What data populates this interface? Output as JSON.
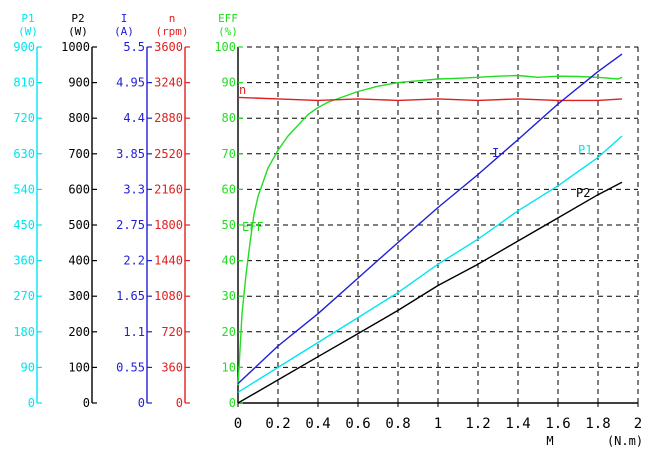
{
  "chart_data": {
    "type": "line",
    "title": "",
    "x_axis": {
      "label": "M",
      "unit": "(N.m)",
      "min": 0,
      "max": 2,
      "ticks": [
        "0",
        "0.2",
        "0.4",
        "0.6",
        "0.8",
        "1",
        "1.2",
        "1.4",
        "1.6",
        "1.8",
        "2"
      ]
    },
    "grid": "dashed",
    "axes": [
      {
        "id": "P1",
        "name": "P1",
        "unit": "(W)",
        "color": "#00e5ee",
        "min": 0,
        "max": 900,
        "ticks": [
          "0",
          "90",
          "180",
          "270",
          "360",
          "450",
          "540",
          "630",
          "720",
          "810",
          "900"
        ]
      },
      {
        "id": "P2",
        "name": "P2",
        "unit": "(W)",
        "color": "#000000",
        "min": 0,
        "max": 1000,
        "ticks": [
          "0",
          "100",
          "200",
          "300",
          "400",
          "500",
          "600",
          "700",
          "800",
          "900",
          "1000"
        ]
      },
      {
        "id": "I",
        "name": "I",
        "unit": "(A)",
        "color": "#1f1fd6",
        "min": 0,
        "max": 5.5,
        "ticks": [
          "0",
          "0.55",
          "1.1",
          "1.65",
          "2.2",
          "2.75",
          "3.3",
          "3.85",
          "4.4",
          "4.95",
          "5.5"
        ]
      },
      {
        "id": "n",
        "name": "n",
        "unit": "(rpm)",
        "color": "#e02020",
        "min": 0,
        "max": 3600,
        "ticks": [
          "0",
          "360",
          "720",
          "1080",
          "1440",
          "1800",
          "2160",
          "2520",
          "2880",
          "3240",
          "3600"
        ]
      },
      {
        "id": "EFF",
        "name": "EFF",
        "unit": "(%)",
        "color": "#22dd22",
        "min": 0,
        "max": 100,
        "ticks": [
          "0",
          "10",
          "20",
          "30",
          "40",
          "50",
          "60",
          "70",
          "80",
          "90",
          "100"
        ]
      }
    ],
    "series": [
      {
        "name": "EFF",
        "axis": "EFF",
        "color": "#22dd22",
        "label": "EFF",
        "x": [
          0,
          0.01,
          0.02,
          0.04,
          0.06,
          0.08,
          0.1,
          0.15,
          0.2,
          0.25,
          0.3,
          0.35,
          0.4,
          0.45,
          0.5,
          0.6,
          0.7,
          0.8,
          0.9,
          1.0,
          1.1,
          1.2,
          1.3,
          1.4,
          1.5,
          1.6,
          1.7,
          1.8,
          1.9,
          1.92
        ],
        "y": [
          5,
          15,
          25,
          36,
          45,
          53,
          58,
          66,
          71,
          75,
          78,
          81,
          83,
          84.5,
          85.5,
          87.5,
          89,
          90,
          90.5,
          91,
          91.2,
          91.5,
          91.8,
          92,
          91.5,
          91.8,
          91.7,
          91.5,
          91,
          91.5
        ]
      },
      {
        "name": "n",
        "axis": "n",
        "color": "#e02020",
        "label": "n",
        "x": [
          0,
          0.2,
          0.4,
          0.6,
          0.8,
          1.0,
          1.2,
          1.4,
          1.6,
          1.8,
          1.92
        ],
        "y": [
          3090,
          3075,
          3060,
          3075,
          3060,
          3075,
          3060,
          3075,
          3060,
          3060,
          3075
        ]
      },
      {
        "name": "I",
        "axis": "I",
        "color": "#1f1fd6",
        "label": "I",
        "x": [
          0,
          0.2,
          0.4,
          0.6,
          0.8,
          1.0,
          1.2,
          1.4,
          1.6,
          1.8,
          1.92
        ],
        "y": [
          0.3,
          0.88,
          1.38,
          1.93,
          2.48,
          3.02,
          3.53,
          4.07,
          4.62,
          5.12,
          5.39
        ]
      },
      {
        "name": "P1",
        "axis": "P1",
        "color": "#00e5ee",
        "label": "P1",
        "x": [
          0,
          0.2,
          0.4,
          0.6,
          0.8,
          1.0,
          1.2,
          1.4,
          1.6,
          1.8,
          1.92
        ],
        "y": [
          27,
          90,
          153,
          216,
          279,
          351,
          414,
          486,
          549,
          621,
          675
        ]
      },
      {
        "name": "P2",
        "axis": "P2",
        "color": "#000000",
        "label": "P2",
        "x": [
          0,
          0.2,
          0.4,
          0.6,
          0.8,
          1.0,
          1.2,
          1.4,
          1.6,
          1.8,
          1.92
        ],
        "y": [
          0,
          65,
          130,
          195,
          260,
          330,
          390,
          455,
          520,
          585,
          620
        ]
      }
    ]
  }
}
